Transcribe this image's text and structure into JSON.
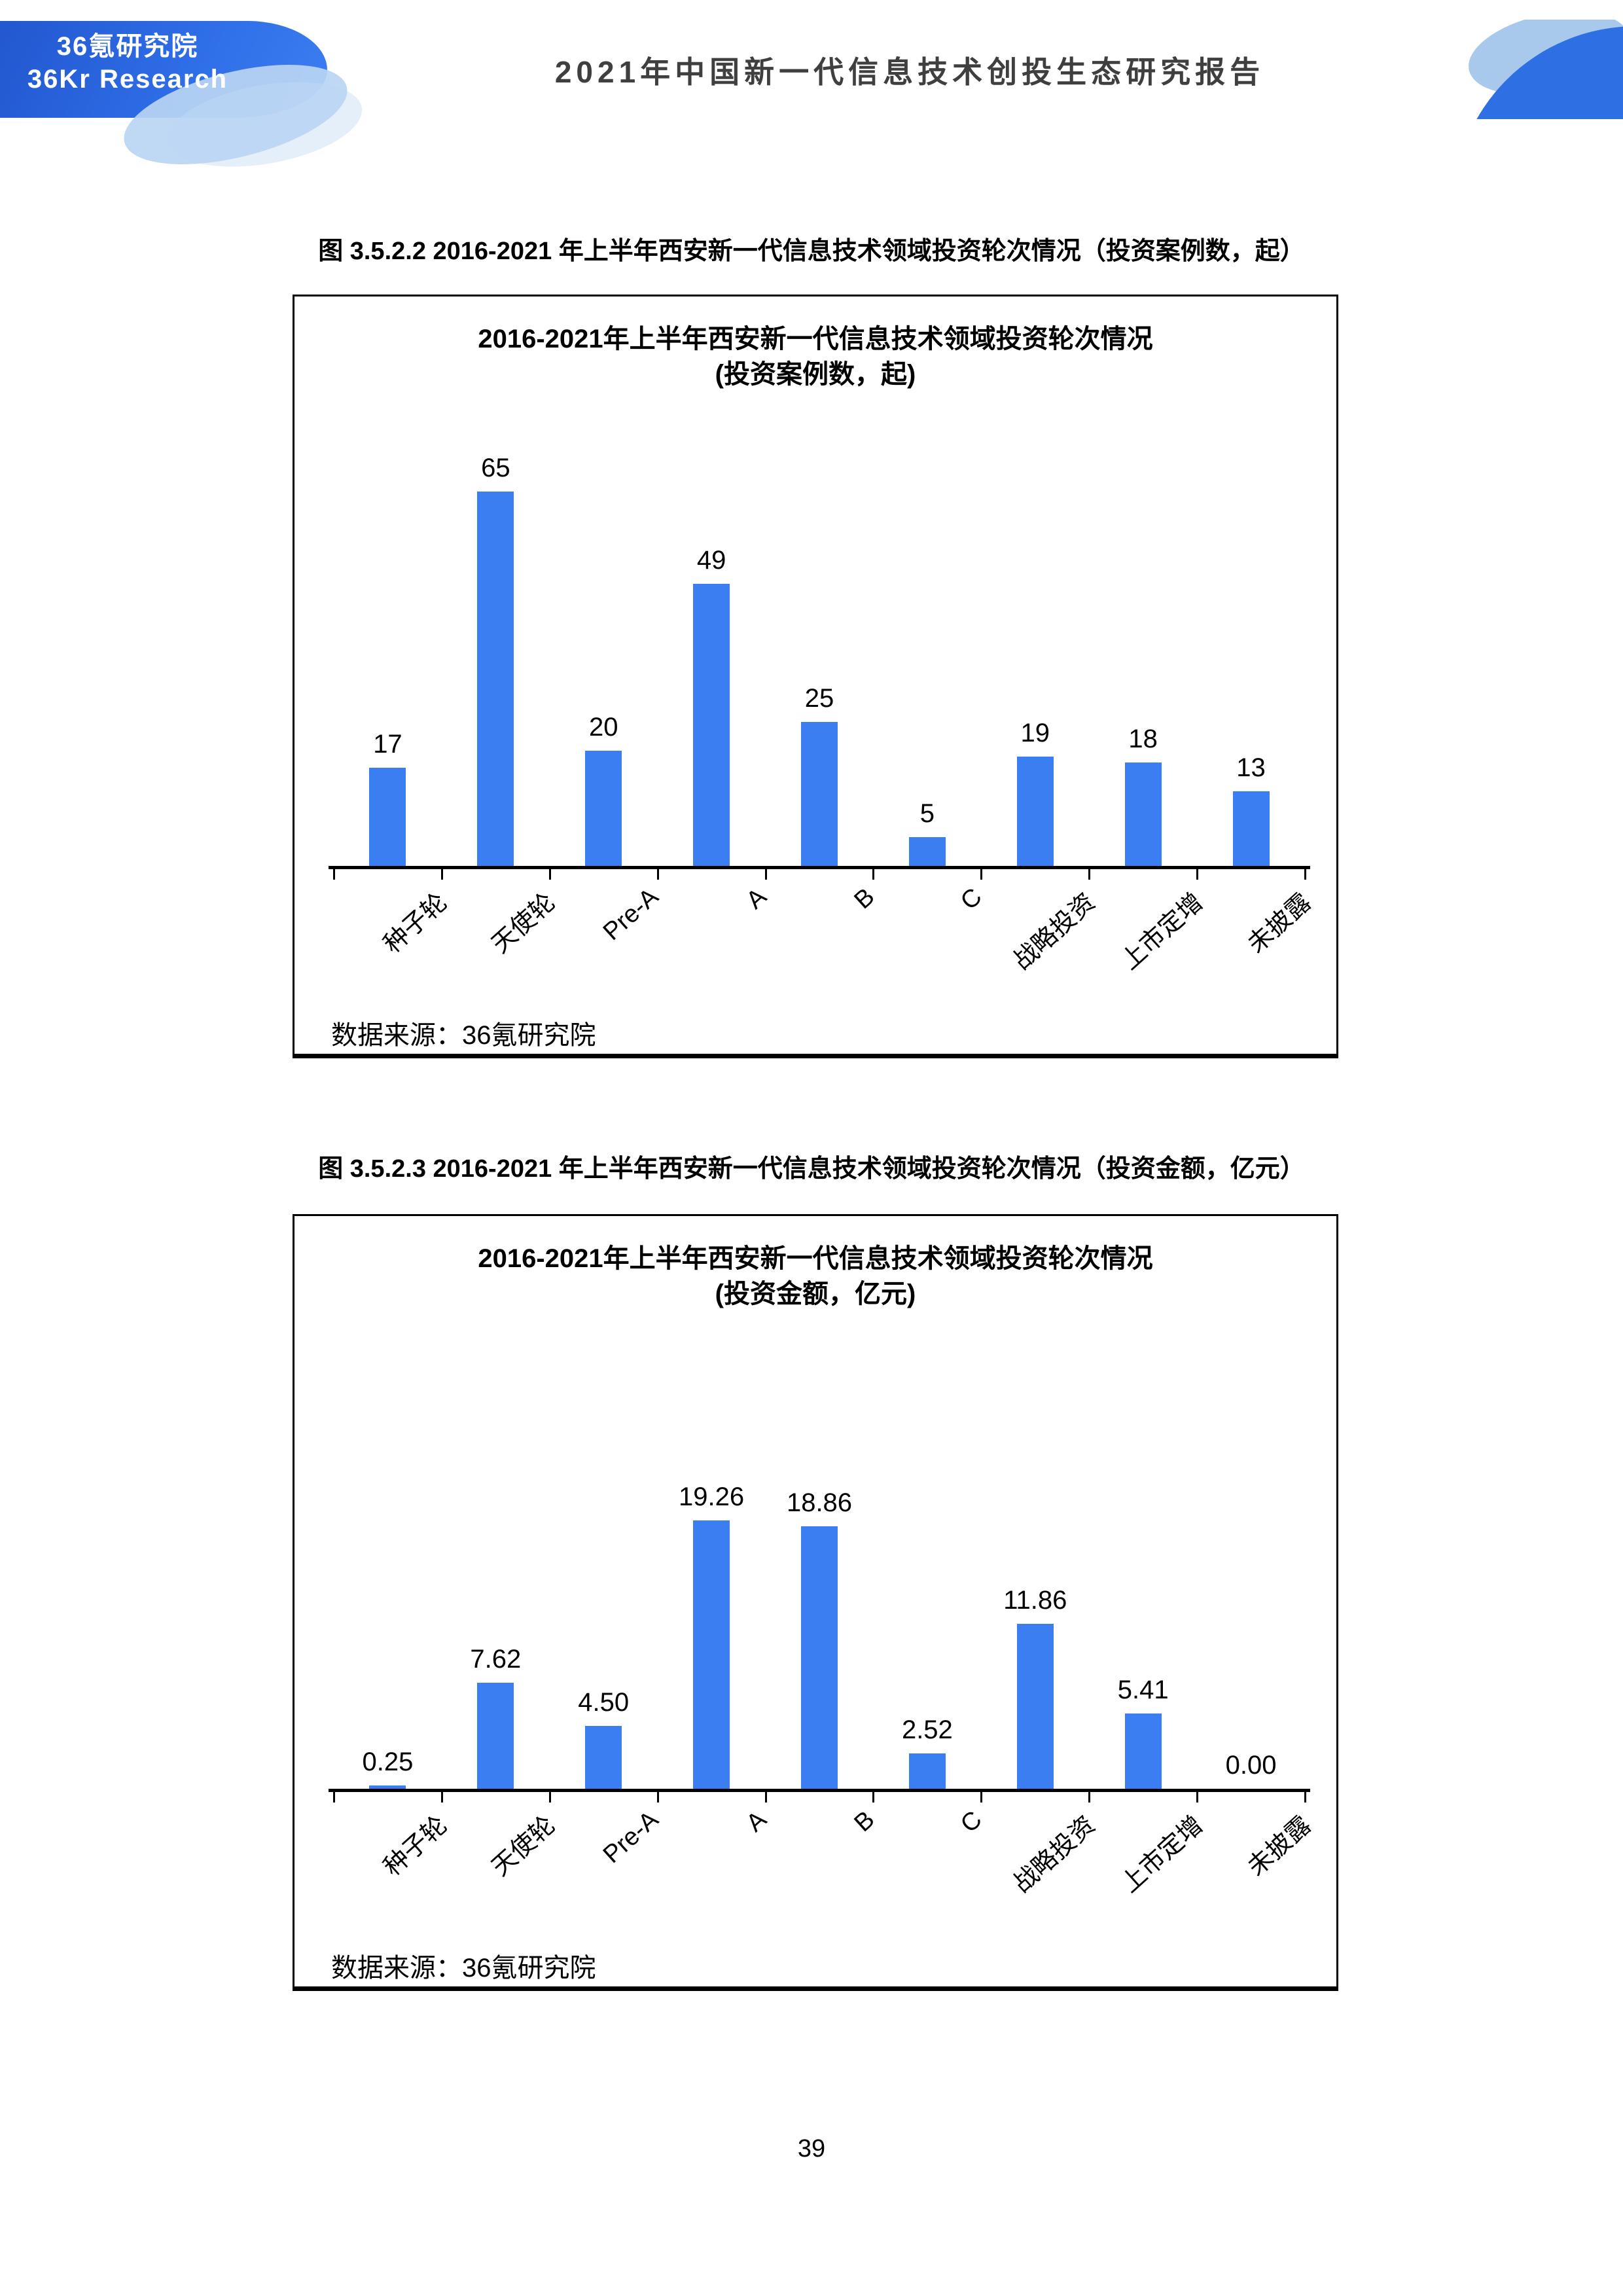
{
  "header": {
    "logo_line1": "36氪研究院",
    "logo_line2": "36Kr Research",
    "title": "2021年中国新一代信息技术创投生态研究报告"
  },
  "captions": {
    "fig1": "图 3.5.2.2 2016-2021 年上半年西安新一代信息技术领域投资轮次情况（投资案例数，起）",
    "fig2": "图 3.5.2.3 2016-2021 年上半年西安新一代信息技术领域投资轮次情况（投资金额，亿元）"
  },
  "footer": {
    "page_number": "39"
  },
  "colors": {
    "bar": "#3b7ef2",
    "banner_blue": "#2e6de6",
    "light_blue": "#bad5f3",
    "deco_dark_blue": "#2e6fe3",
    "header_title_text": "#3f3f3f"
  },
  "chart_data": [
    {
      "type": "bar",
      "title_line1": "2016-2021年上半年西安新一代信息技术领域投资轮次情况",
      "title_line2": "(投资案例数，起)",
      "categories": [
        "种子轮",
        "天使轮",
        "Pre-A",
        "A",
        "B",
        "C",
        "战略投资",
        "上市定增",
        "未披露"
      ],
      "values": [
        17,
        65,
        20,
        49,
        25,
        5,
        19,
        18,
        13
      ],
      "value_labels": [
        "17",
        "65",
        "20",
        "49",
        "25",
        "5",
        "19",
        "18",
        "13"
      ],
      "ylim": [
        0,
        65
      ],
      "xlabel": "",
      "ylabel": "",
      "grid": false,
      "legend": false,
      "source": "数据来源：36氪研究院"
    },
    {
      "type": "bar",
      "title_line1": "2016-2021年上半年西安新一代信息技术领域投资轮次情况",
      "title_line2": "(投资金额，亿元)",
      "categories": [
        "种子轮",
        "天使轮",
        "Pre-A",
        "A",
        "B",
        "C",
        "战略投资",
        "上市定增",
        "未披露"
      ],
      "values": [
        0.25,
        7.62,
        4.5,
        19.26,
        18.86,
        2.52,
        11.86,
        5.41,
        0.0
      ],
      "value_labels": [
        "0.25",
        "7.62",
        "4.50",
        "19.26",
        "18.86",
        "2.52",
        "11.86",
        "5.41",
        "0.00"
      ],
      "ylim": [
        0,
        19.26
      ],
      "xlabel": "",
      "ylabel": "",
      "grid": false,
      "legend": false,
      "source": "数据来源：36氪研究院"
    }
  ]
}
